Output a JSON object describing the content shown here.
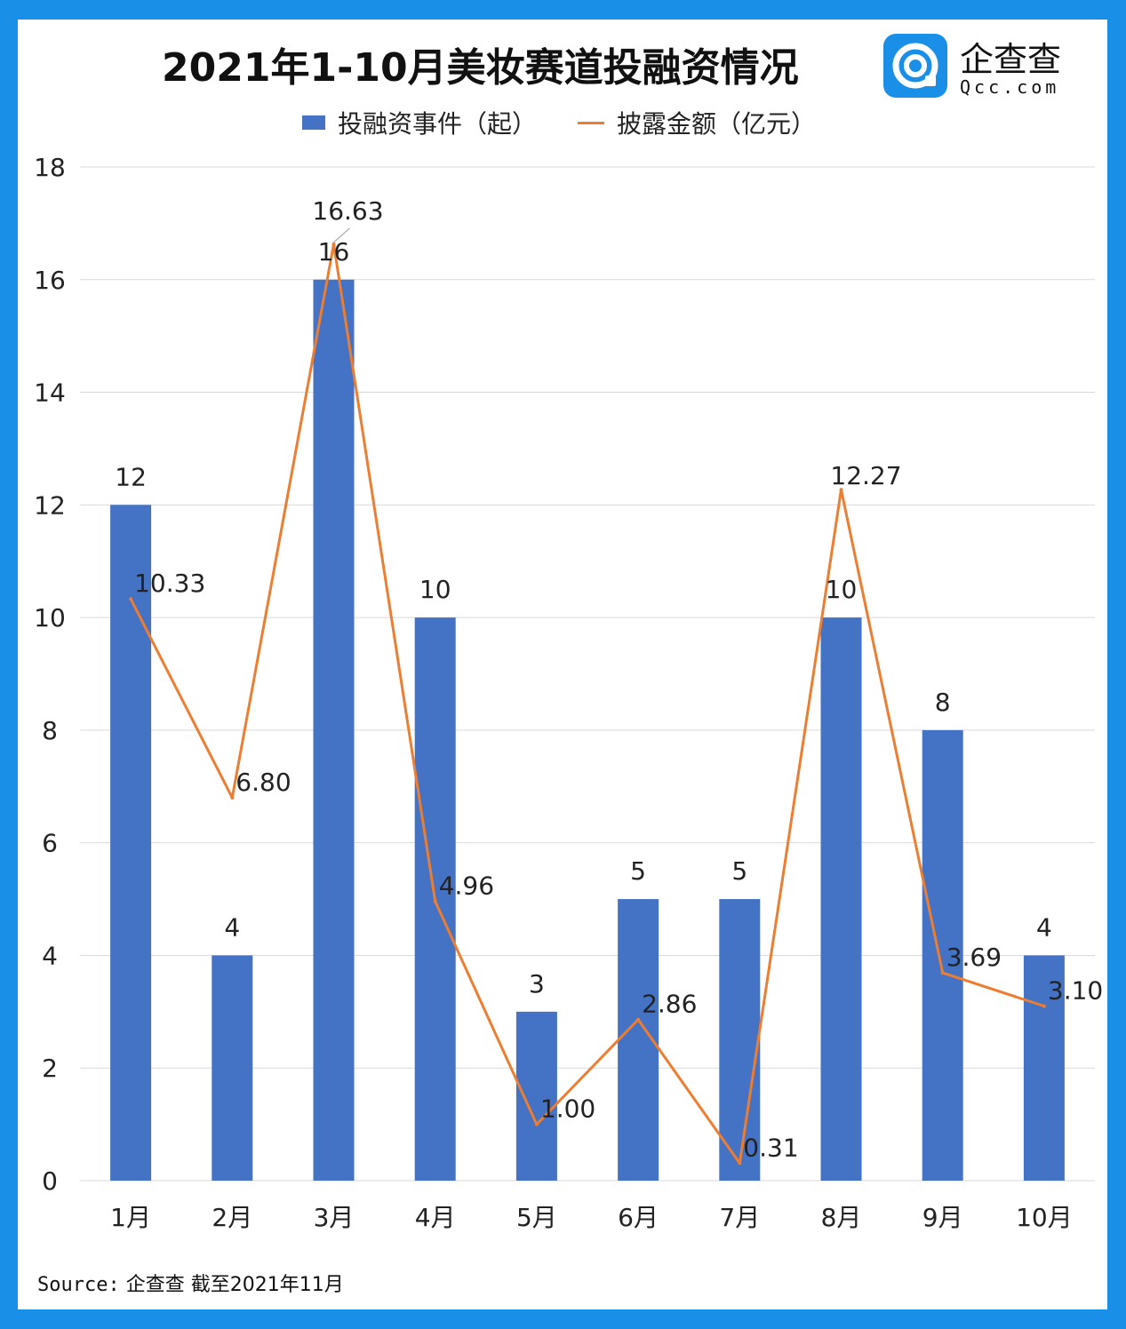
{
  "chart_data": {
    "type": "bar",
    "title": "2021年1-10月美妆赛道投融资情况",
    "categories": [
      "1月",
      "2月",
      "3月",
      "4月",
      "5月",
      "6月",
      "7月",
      "8月",
      "9月",
      "10月"
    ],
    "series": [
      {
        "name": "投融资事件（起）",
        "type": "bar",
        "color": "#4472c4",
        "values": [
          12,
          4,
          16,
          10,
          3,
          5,
          5,
          10,
          8,
          4
        ],
        "labels": [
          "12",
          "4",
          "16",
          "10",
          "3",
          "5",
          "5",
          "10",
          "8",
          "4"
        ]
      },
      {
        "name": "披露金额（亿元）",
        "type": "line",
        "color": "#ed7d31",
        "values": [
          10.33,
          6.8,
          16.63,
          4.96,
          1.0,
          2.86,
          0.31,
          12.27,
          3.69,
          3.1
        ],
        "labels": [
          "10.33",
          "6.80",
          "16.63",
          "4.96",
          "1.00",
          "2.86",
          "0.31",
          "12.27",
          "3.69",
          "3.10"
        ]
      }
    ],
    "ylim": [
      0,
      18
    ],
    "yticks": [
      "0",
      "2",
      "4",
      "6",
      "8",
      "10",
      "12",
      "14",
      "16",
      "18"
    ],
    "grid": true,
    "legend": "top"
  },
  "brand": {
    "name": "企查查",
    "url": "Qcc.com",
    "logo_icon": "qcc-logo-icon"
  },
  "source": {
    "label": "Source:",
    "text": "企查查 截至2021年11月"
  },
  "colors": {
    "background": "#1a8fe8",
    "bar": "#4472c4",
    "line": "#ed7d31"
  }
}
